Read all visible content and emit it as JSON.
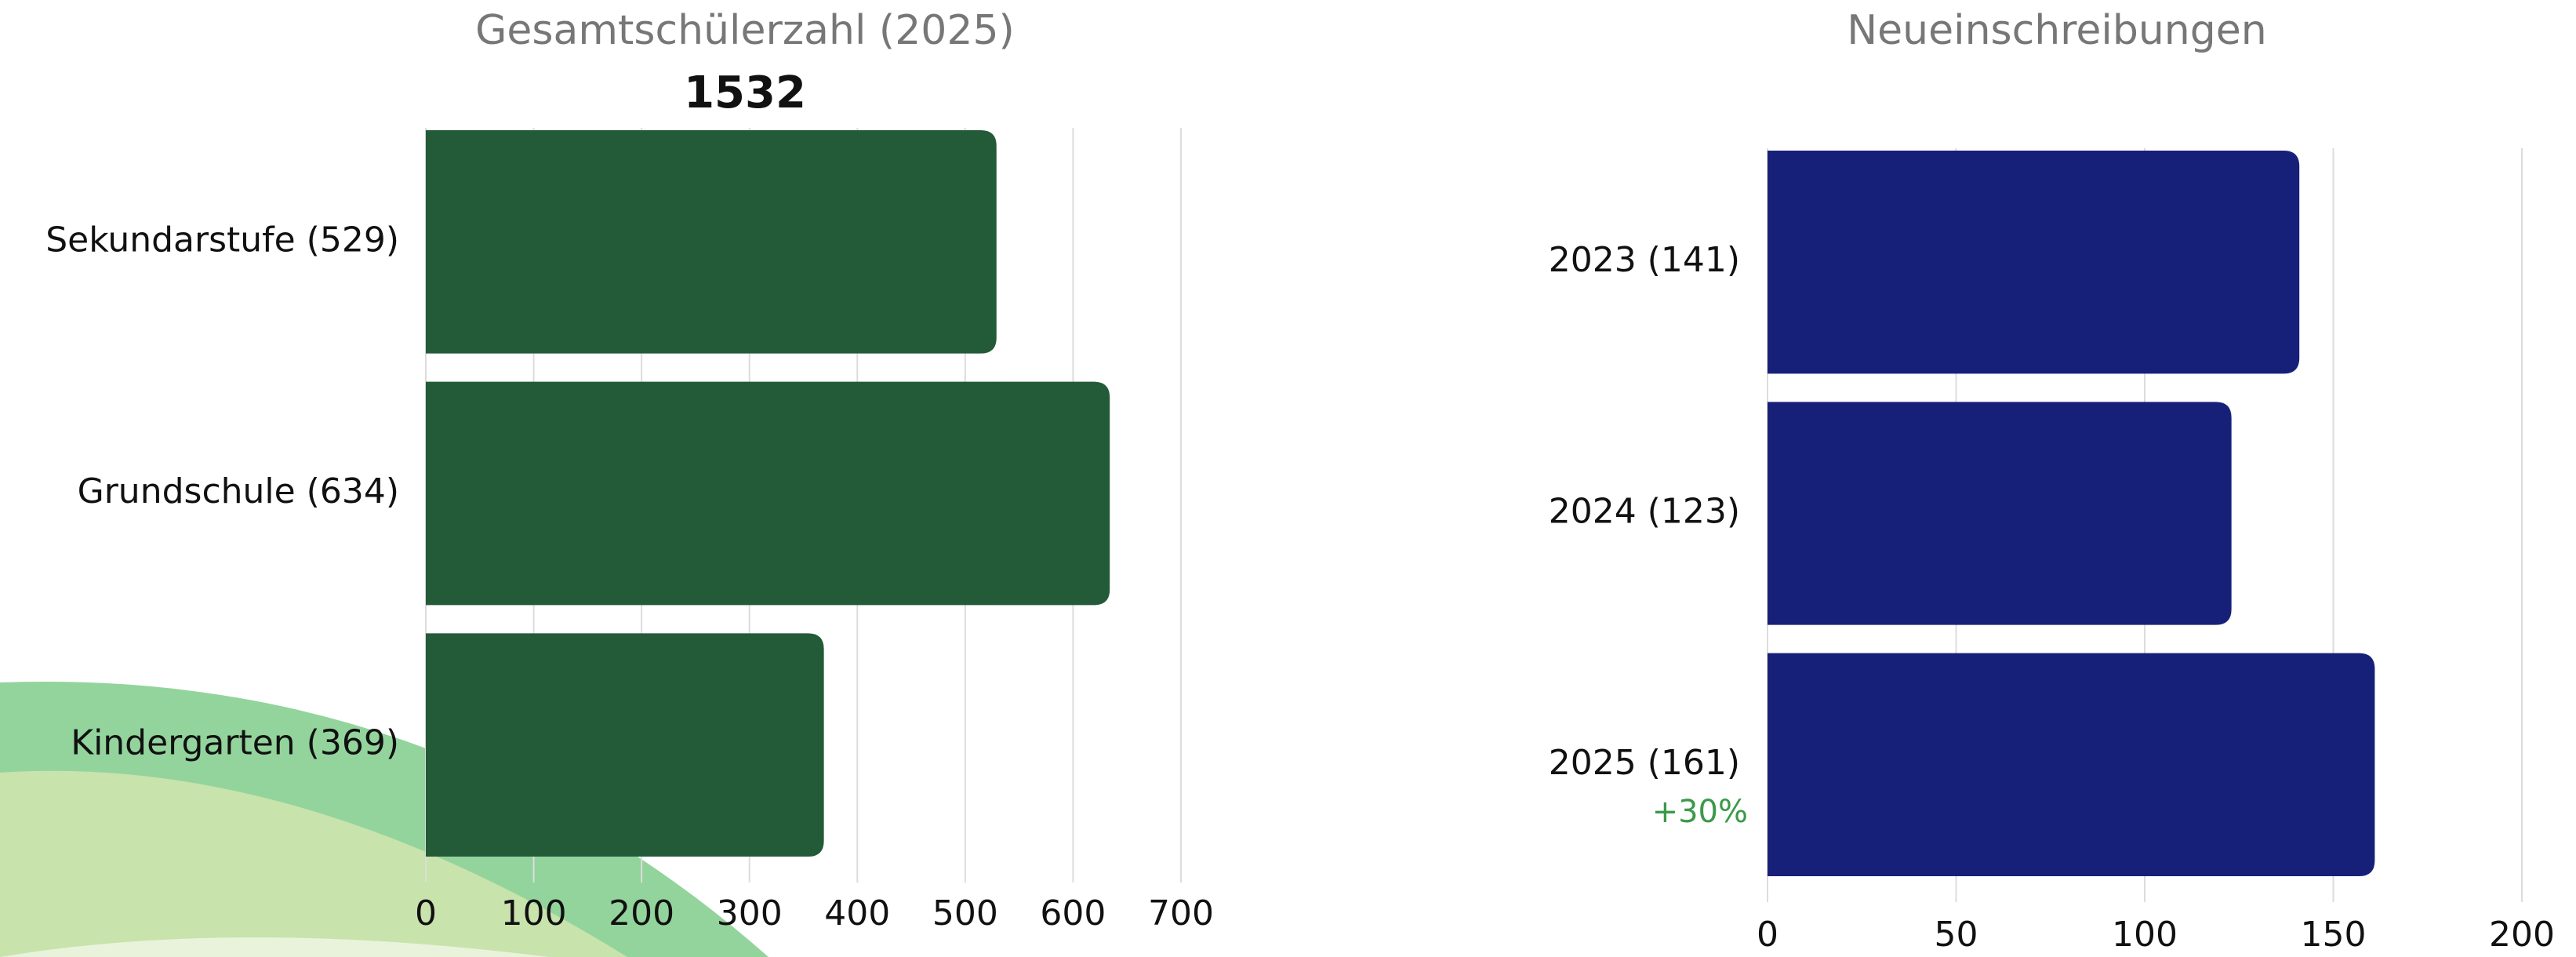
{
  "chart_data": [
    {
      "type": "bar",
      "orientation": "horizontal",
      "title": "Gesamtschülerzahl (2025)",
      "subtitle": "1532",
      "categories": [
        "Sekundarstufe (529)",
        "Grundschule (634)",
        "Kindergarten (369)"
      ],
      "values": [
        529,
        634,
        369
      ],
      "color": "#235a38",
      "xlim": [
        0,
        700
      ],
      "xticks": [
        0,
        100,
        200,
        300,
        400,
        500,
        600,
        700
      ],
      "grid": true
    },
    {
      "type": "bar",
      "orientation": "horizontal",
      "title": "Neueinschreibungen",
      "categories": [
        "2023 (141)",
        "2024 (123)",
        "2025 (161)"
      ],
      "values": [
        141,
        123,
        161
      ],
      "color": "#172079",
      "annotation": "+30%",
      "annotation_color": "#3a9a4a",
      "xlim": [
        0,
        200
      ],
      "xticks": [
        0,
        50,
        100,
        150,
        200
      ],
      "grid": true
    }
  ]
}
